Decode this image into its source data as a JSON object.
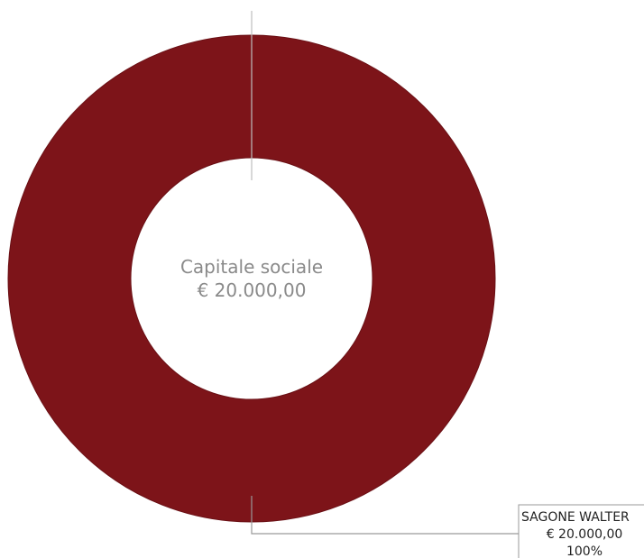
{
  "chart_data": {
    "type": "pie",
    "donut": true,
    "center_label": {
      "line1": "Capitale sociale",
      "line2": "€ 20.000,00"
    },
    "slices": [
      {
        "name": "SAGONE WALTER",
        "value": 20000,
        "value_label": "€ 20.000,00",
        "percent_label": "100%",
        "color": "#7d1419"
      }
    ]
  }
}
